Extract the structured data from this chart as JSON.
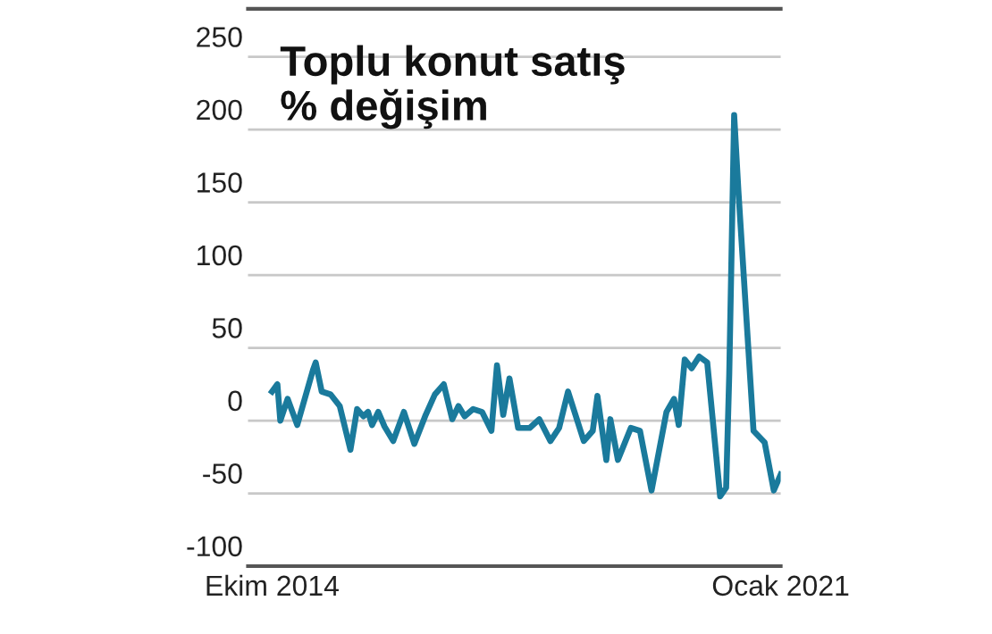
{
  "chart_data": {
    "type": "line",
    "title": "Toplu konut satış\n% değişim",
    "x": [
      "2014-10-01",
      "2014-10-25",
      "2014-11-07",
      "2014-12-10",
      "2015-01-22",
      "2015-04-03",
      "2015-04-15",
      "2015-05-12",
      "2015-06-21",
      "2015-08-01",
      "2015-09-18",
      "2015-10-18",
      "2015-11-15",
      "2015-12-06",
      "2015-12-24",
      "2016-01-21",
      "2016-02-18",
      "2016-03-28",
      "2016-05-15",
      "2016-07-01",
      "2016-08-21",
      "2016-10-01",
      "2016-11-10",
      "2016-12-18",
      "2017-01-15",
      "2017-02-12",
      "2017-03-22",
      "2017-05-01",
      "2017-06-12",
      "2017-07-07",
      "2017-08-04",
      "2017-09-01",
      "2017-10-10",
      "2017-12-01",
      "2018-01-13",
      "2018-03-04",
      "2018-04-12",
      "2018-05-22",
      "2018-08-01",
      "2018-09-10",
      "2018-10-01",
      "2018-11-10",
      "2018-11-28",
      "2019-01-01",
      "2019-02-28",
      "2019-04-10",
      "2019-06-01",
      "2019-08-07",
      "2019-09-10",
      "2019-10-01",
      "2019-10-28",
      "2019-11-28",
      "2020-01-01",
      "2020-02-06",
      "2020-04-04",
      "2020-05-01",
      "2020-05-15",
      "2020-06-06",
      "2020-06-25",
      "2020-09-01",
      "2020-10-21",
      "2020-12-01",
      "2021-01-01"
    ],
    "series": [
      {
        "color": "#1a7a9c",
        "values": [
          20,
          25,
          0,
          15,
          -3,
          35,
          40,
          20,
          18,
          10,
          -20,
          8,
          3,
          6,
          -3,
          6,
          -4,
          -14,
          6,
          -16,
          4,
          18,
          25,
          1,
          10,
          3,
          8,
          6,
          -7,
          38,
          4,
          29,
          -5,
          -5,
          1,
          -14,
          -5,
          20,
          -14,
          -7,
          17,
          -27,
          1,
          -27,
          -5,
          -7,
          -48,
          6,
          15,
          -3,
          42,
          36,
          44,
          40,
          -52,
          -46,
          32,
          210,
          158,
          -7,
          -15,
          -48,
          -37
        ]
      }
    ],
    "xlim": [
      "2014-06-15",
      "2021-01-01"
    ],
    "xticks": [
      {
        "value": "2014-10-01",
        "label": "Ekim 2014"
      },
      {
        "value": "2021-01-01",
        "label": "Ocak 2021"
      }
    ],
    "ylim": [
      -100,
      283
    ],
    "yticks": [
      -100,
      -50,
      0,
      50,
      100,
      150,
      200,
      250
    ],
    "grid": "y",
    "legend": false,
    "marker": "none",
    "line_style": "solid"
  }
}
